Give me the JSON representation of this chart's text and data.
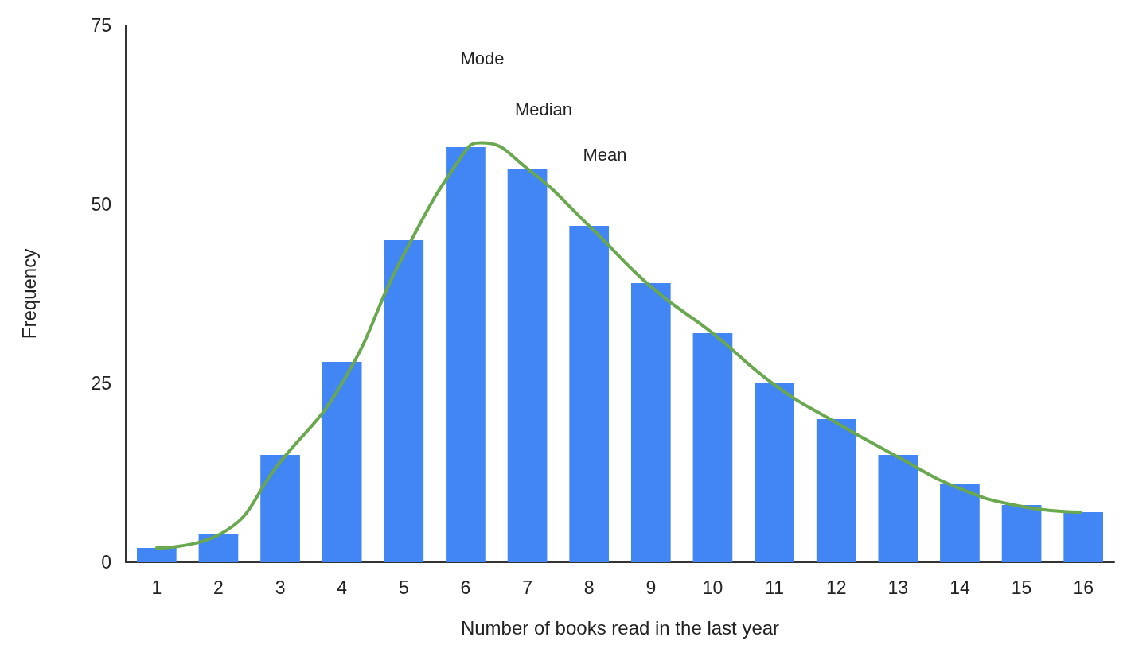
{
  "chart_data": {
    "type": "bar",
    "xlabel": "Number of books read in the last year",
    "ylabel": "Frequency",
    "x": [
      1,
      2,
      3,
      4,
      5,
      6,
      7,
      8,
      9,
      10,
      11,
      12,
      13,
      14,
      15,
      16
    ],
    "xlim": [
      0.5,
      16.5
    ],
    "xticks": [
      1,
      2,
      3,
      4,
      5,
      6,
      7,
      8,
      9,
      10,
      11,
      12,
      13,
      14,
      15,
      16
    ],
    "ylim": [
      0,
      75
    ],
    "yticks": [
      0,
      25,
      50,
      75
    ],
    "grid": false,
    "series": [
      {
        "color": "#4285f4",
        "values": [
          2,
          4,
          15,
          28,
          45,
          58,
          55,
          47,
          39,
          32,
          25,
          20,
          15,
          11,
          8,
          7
        ]
      },
      {
        "type": "line",
        "color": "#6aa84f",
        "marker": "none",
        "line_style": "solid",
        "x": [
          1,
          2,
          3,
          4,
          5,
          6,
          6.25,
          7,
          8,
          9,
          10,
          11,
          12,
          13,
          14,
          15,
          15.95
        ],
        "values": [
          2,
          3.8,
          14,
          25,
          43,
          57.5,
          58.6,
          55,
          47,
          38.5,
          32,
          24.8,
          19.5,
          14.7,
          10.3,
          7.8,
          7
        ]
      }
    ],
    "annotations": [
      "Mode",
      "Median",
      "Mean"
    ]
  }
}
